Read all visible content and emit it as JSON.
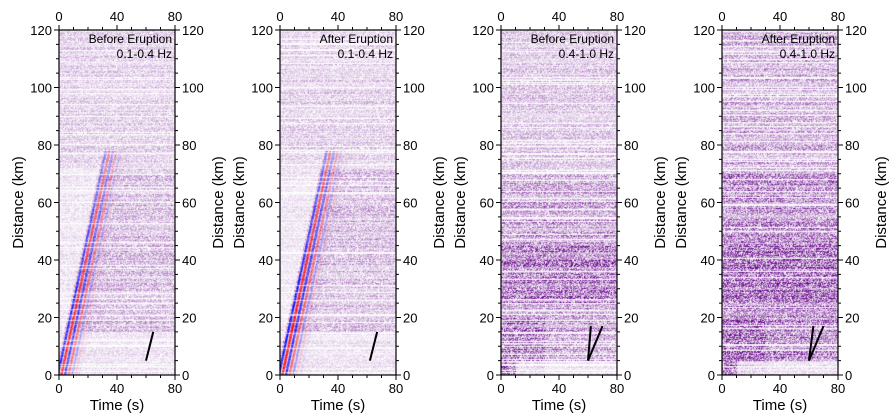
{
  "chart_data": [
    {
      "type": "heatmap",
      "panel_label": [
        "Before Eruption",
        "0.1-0.4 Hz"
      ],
      "xlabel": "Time (s)",
      "ylabel": "Distance (km)",
      "xlim": [
        0,
        80
      ],
      "ylim": [
        0,
        120
      ],
      "xticks": [
        "0",
        "40",
        "80"
      ],
      "yticks": [
        "0",
        "20",
        "40",
        "60",
        "80",
        "100",
        "120"
      ],
      "colormap": "red-white-blue",
      "reference_lines": [
        [
          [
            60,
            5
          ],
          [
            65,
            15
          ]
        ]
      ]
    },
    {
      "type": "heatmap",
      "panel_label": [
        "After Eruption",
        "0.1-0.4 Hz"
      ],
      "xlabel": "Time (s)",
      "ylabel": "Distance (km)",
      "xlim": [
        0,
        80
      ],
      "ylim": [
        0,
        120
      ],
      "xticks": [
        "0",
        "40",
        "80"
      ],
      "yticks": [
        "0",
        "20",
        "40",
        "60",
        "80",
        "100",
        "120"
      ],
      "colormap": "red-white-blue",
      "reference_lines": [
        [
          [
            62,
            5
          ],
          [
            67,
            15
          ]
        ]
      ]
    },
    {
      "type": "heatmap",
      "panel_label": [
        "Before Eruption",
        "0.4-1.0 Hz"
      ],
      "xlabel": "Time (s)",
      "ylabel": "Distance (km)",
      "xlim": [
        0,
        80
      ],
      "ylim": [
        0,
        120
      ],
      "xticks": [
        "0",
        "40",
        "80"
      ],
      "yticks": [
        "0",
        "20",
        "40",
        "60",
        "80",
        "100",
        "120"
      ],
      "colormap": "white-purple",
      "reference_lines": [
        [
          [
            60,
            5
          ],
          [
            62,
            17
          ]
        ],
        [
          [
            60,
            5
          ],
          [
            70,
            17
          ]
        ]
      ]
    },
    {
      "type": "heatmap",
      "panel_label": [
        "After Eruption",
        "0.4-1.0 Hz"
      ],
      "xlabel": "Time (s)",
      "ylabel": "Distance (km)",
      "xlim": [
        0,
        80
      ],
      "ylim": [
        0,
        120
      ],
      "xticks": [
        "0",
        "40",
        "80"
      ],
      "yticks": [
        "0",
        "20",
        "40",
        "60",
        "80",
        "100",
        "120"
      ],
      "colormap": "white-purple",
      "reference_lines": [
        [
          [
            60,
            5
          ],
          [
            63,
            17
          ]
        ],
        [
          [
            60,
            5
          ],
          [
            70,
            17
          ]
        ]
      ]
    }
  ],
  "colors": {
    "positive": "#ff0000",
    "negative": "#0000ff",
    "envelope": "#6a0a8a"
  }
}
